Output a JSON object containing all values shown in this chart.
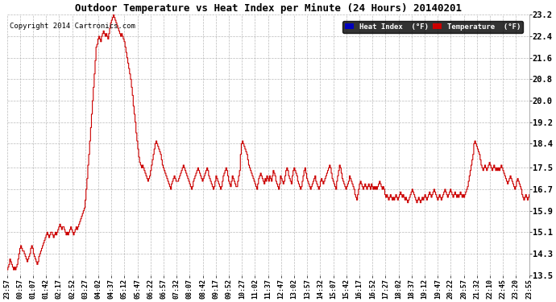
{
  "title": "Outdoor Temperature vs Heat Index per Minute (24 Hours) 20140201",
  "copyright": "Copyright 2014 Cartronics.com",
  "legend_labels": [
    "Heat Index  (°F)",
    "Temperature  (°F)"
  ],
  "legend_colors": [
    "#0000bb",
    "#cc0000"
  ],
  "line_color": "#cc0000",
  "background_color": "#ffffff",
  "grid_color": "#aaaaaa",
  "ylim": [
    13.5,
    23.2
  ],
  "yticks": [
    13.5,
    14.3,
    15.1,
    15.9,
    16.7,
    17.5,
    18.4,
    19.2,
    20.0,
    20.8,
    21.6,
    22.4,
    23.2
  ],
  "xtick_labels": [
    "23:57",
    "00:57",
    "01:07",
    "01:42",
    "02:17",
    "02:52",
    "03:27",
    "04:02",
    "04:37",
    "05:12",
    "05:47",
    "06:22",
    "06:57",
    "07:32",
    "08:07",
    "08:42",
    "09:17",
    "09:52",
    "10:27",
    "11:02",
    "11:37",
    "12:47",
    "13:02",
    "13:57",
    "14:32",
    "15:07",
    "15:42",
    "16:17",
    "16:52",
    "17:27",
    "18:02",
    "18:37",
    "19:12",
    "19:47",
    "20:22",
    "20:57",
    "21:32",
    "22:10",
    "22:45",
    "23:20",
    "23:55"
  ],
  "temp_data": [
    13.7,
    13.8,
    13.9,
    14.1,
    14.0,
    13.9,
    13.8,
    13.7,
    13.8,
    13.7,
    13.8,
    13.9,
    14.1,
    14.3,
    14.5,
    14.6,
    14.5,
    14.4,
    14.4,
    14.3,
    14.2,
    14.1,
    14.0,
    14.1,
    14.2,
    14.3,
    14.5,
    14.6,
    14.5,
    14.3,
    14.2,
    14.1,
    14.0,
    13.9,
    14.0,
    14.2,
    14.3,
    14.4,
    14.5,
    14.6,
    14.7,
    14.8,
    14.9,
    15.0,
    15.1,
    15.0,
    14.9,
    15.0,
    15.1,
    15.1,
    15.0,
    14.9,
    15.0,
    15.1,
    15.0,
    15.1,
    15.2,
    15.3,
    15.4,
    15.3,
    15.2,
    15.3,
    15.3,
    15.2,
    15.1,
    15.0,
    15.1,
    15.0,
    15.1,
    15.2,
    15.3,
    15.2,
    15.1,
    15.0,
    15.1,
    15.2,
    15.3,
    15.2,
    15.3,
    15.4,
    15.5,
    15.6,
    15.7,
    15.8,
    15.9,
    16.0,
    16.3,
    16.7,
    17.1,
    17.6,
    18.0,
    18.5,
    19.0,
    19.5,
    20.0,
    20.5,
    21.0,
    21.5,
    22.0,
    22.1,
    22.3,
    22.4,
    22.3,
    22.2,
    22.4,
    22.5,
    22.6,
    22.5,
    22.4,
    22.5,
    22.4,
    22.3,
    22.5,
    22.7,
    22.9,
    23.0,
    23.1,
    23.2,
    23.1,
    23.0,
    22.9,
    22.8,
    22.7,
    22.6,
    22.5,
    22.4,
    22.5,
    22.4,
    22.3,
    22.2,
    22.0,
    21.8,
    21.6,
    21.4,
    21.2,
    21.0,
    20.8,
    20.5,
    20.2,
    19.8,
    19.5,
    19.2,
    18.8,
    18.5,
    18.2,
    17.9,
    17.7,
    17.6,
    17.5,
    17.6,
    17.5,
    17.4,
    17.3,
    17.2,
    17.1,
    17.0,
    17.1,
    17.2,
    17.4,
    17.6,
    17.8,
    18.0,
    18.2,
    18.4,
    18.5,
    18.4,
    18.3,
    18.2,
    18.1,
    18.0,
    17.8,
    17.6,
    17.5,
    17.4,
    17.3,
    17.2,
    17.1,
    17.0,
    16.9,
    16.8,
    16.7,
    16.9,
    17.0,
    17.1,
    17.2,
    17.1,
    17.0,
    17.0,
    17.0,
    17.1,
    17.2,
    17.3,
    17.4,
    17.5,
    17.6,
    17.5,
    17.4,
    17.3,
    17.2,
    17.1,
    17.0,
    16.9,
    16.8,
    16.7,
    16.8,
    17.0,
    17.1,
    17.2,
    17.3,
    17.4,
    17.5,
    17.4,
    17.3,
    17.2,
    17.1,
    17.0,
    17.1,
    17.2,
    17.3,
    17.4,
    17.5,
    17.4,
    17.2,
    17.1,
    17.0,
    16.9,
    16.8,
    16.7,
    16.8,
    17.0,
    17.2,
    17.1,
    17.0,
    16.9,
    16.8,
    16.7,
    16.8,
    17.0,
    17.2,
    17.3,
    17.4,
    17.5,
    17.4,
    17.2,
    17.0,
    16.9,
    16.8,
    17.0,
    17.2,
    17.1,
    17.0,
    16.9,
    16.8,
    16.8,
    17.0,
    17.2,
    17.4,
    18.0,
    18.4,
    18.5,
    18.4,
    18.3,
    18.2,
    18.1,
    18.0,
    17.8,
    17.6,
    17.5,
    17.4,
    17.3,
    17.2,
    17.1,
    17.0,
    16.9,
    16.8,
    16.7,
    16.9,
    17.1,
    17.2,
    17.3,
    17.2,
    17.1,
    17.0,
    16.9,
    17.1,
    17.0,
    17.2,
    17.1,
    17.0,
    17.2,
    17.1,
    17.0,
    17.2,
    17.4,
    17.3,
    17.2,
    17.0,
    16.9,
    16.8,
    16.7,
    16.9,
    17.2,
    17.1,
    17.0,
    16.9,
    17.0,
    17.2,
    17.4,
    17.5,
    17.4,
    17.2,
    17.1,
    17.0,
    16.9,
    17.2,
    17.4,
    17.5,
    17.4,
    17.3,
    17.2,
    17.0,
    16.9,
    16.8,
    16.7,
    16.8,
    17.0,
    17.2,
    17.4,
    17.5,
    17.3,
    17.1,
    17.0,
    16.9,
    16.8,
    16.7,
    16.8,
    16.9,
    17.0,
    17.1,
    17.2,
    17.0,
    16.9,
    16.8,
    16.7,
    16.8,
    17.0,
    17.1,
    17.0,
    16.9,
    17.0,
    17.1,
    17.2,
    17.3,
    17.4,
    17.5,
    17.6,
    17.5,
    17.3,
    17.1,
    17.0,
    16.9,
    16.8,
    16.7,
    17.0,
    17.2,
    17.4,
    17.6,
    17.5,
    17.3,
    17.1,
    17.0,
    16.9,
    16.8,
    16.7,
    16.8,
    16.9,
    17.0,
    17.2,
    17.1,
    17.0,
    16.9,
    16.8,
    16.7,
    16.5,
    16.4,
    16.3,
    16.5,
    16.7,
    16.9,
    17.0,
    16.9,
    16.8,
    16.7,
    16.8,
    16.9,
    16.8,
    16.7,
    16.8,
    16.9,
    16.8,
    16.7,
    16.9,
    16.8,
    16.7,
    16.8,
    16.7,
    16.8,
    16.7,
    16.8,
    16.9,
    17.0,
    16.9,
    16.8,
    16.7,
    16.8,
    16.7,
    16.5,
    16.4,
    16.5,
    16.4,
    16.3,
    16.4,
    16.5,
    16.4,
    16.3,
    16.4,
    16.3,
    16.4,
    16.5,
    16.4,
    16.3,
    16.4,
    16.5,
    16.6,
    16.5,
    16.4,
    16.5,
    16.4,
    16.3,
    16.4,
    16.3,
    16.2,
    16.3,
    16.4,
    16.5,
    16.6,
    16.7,
    16.6,
    16.5,
    16.4,
    16.3,
    16.2,
    16.3,
    16.4,
    16.3,
    16.2,
    16.3,
    16.4,
    16.3,
    16.4,
    16.5,
    16.4,
    16.3,
    16.4,
    16.5,
    16.6,
    16.5,
    16.4,
    16.5,
    16.6,
    16.7,
    16.6,
    16.5,
    16.4,
    16.3,
    16.4,
    16.5,
    16.4,
    16.3,
    16.4,
    16.5,
    16.6,
    16.7,
    16.6,
    16.5,
    16.4,
    16.5,
    16.6,
    16.7,
    16.6,
    16.5,
    16.4,
    16.5,
    16.6,
    16.5,
    16.4,
    16.5,
    16.4,
    16.5,
    16.6,
    16.5,
    16.4,
    16.5,
    16.4,
    16.5,
    16.6,
    16.7,
    16.8,
    17.0,
    17.2,
    17.4,
    17.6,
    17.8,
    18.0,
    18.4,
    18.5,
    18.4,
    18.3,
    18.2,
    18.1,
    18.0,
    17.8,
    17.6,
    17.5,
    17.4,
    17.5,
    17.6,
    17.5,
    17.4,
    17.5,
    17.6,
    17.7,
    17.6,
    17.5,
    17.4,
    17.5,
    17.6,
    17.5,
    17.4,
    17.5,
    17.4,
    17.5,
    17.4,
    17.5,
    17.6,
    17.5,
    17.4,
    17.3,
    17.2,
    17.1,
    17.0,
    16.9,
    17.0,
    17.1,
    17.2,
    17.1,
    17.0,
    16.9,
    16.8,
    16.7,
    16.8,
    17.0,
    17.1,
    17.0,
    16.9,
    16.8,
    16.7,
    16.5,
    16.4,
    16.3,
    16.4,
    16.5,
    16.4,
    16.3,
    16.4,
    16.5
  ]
}
